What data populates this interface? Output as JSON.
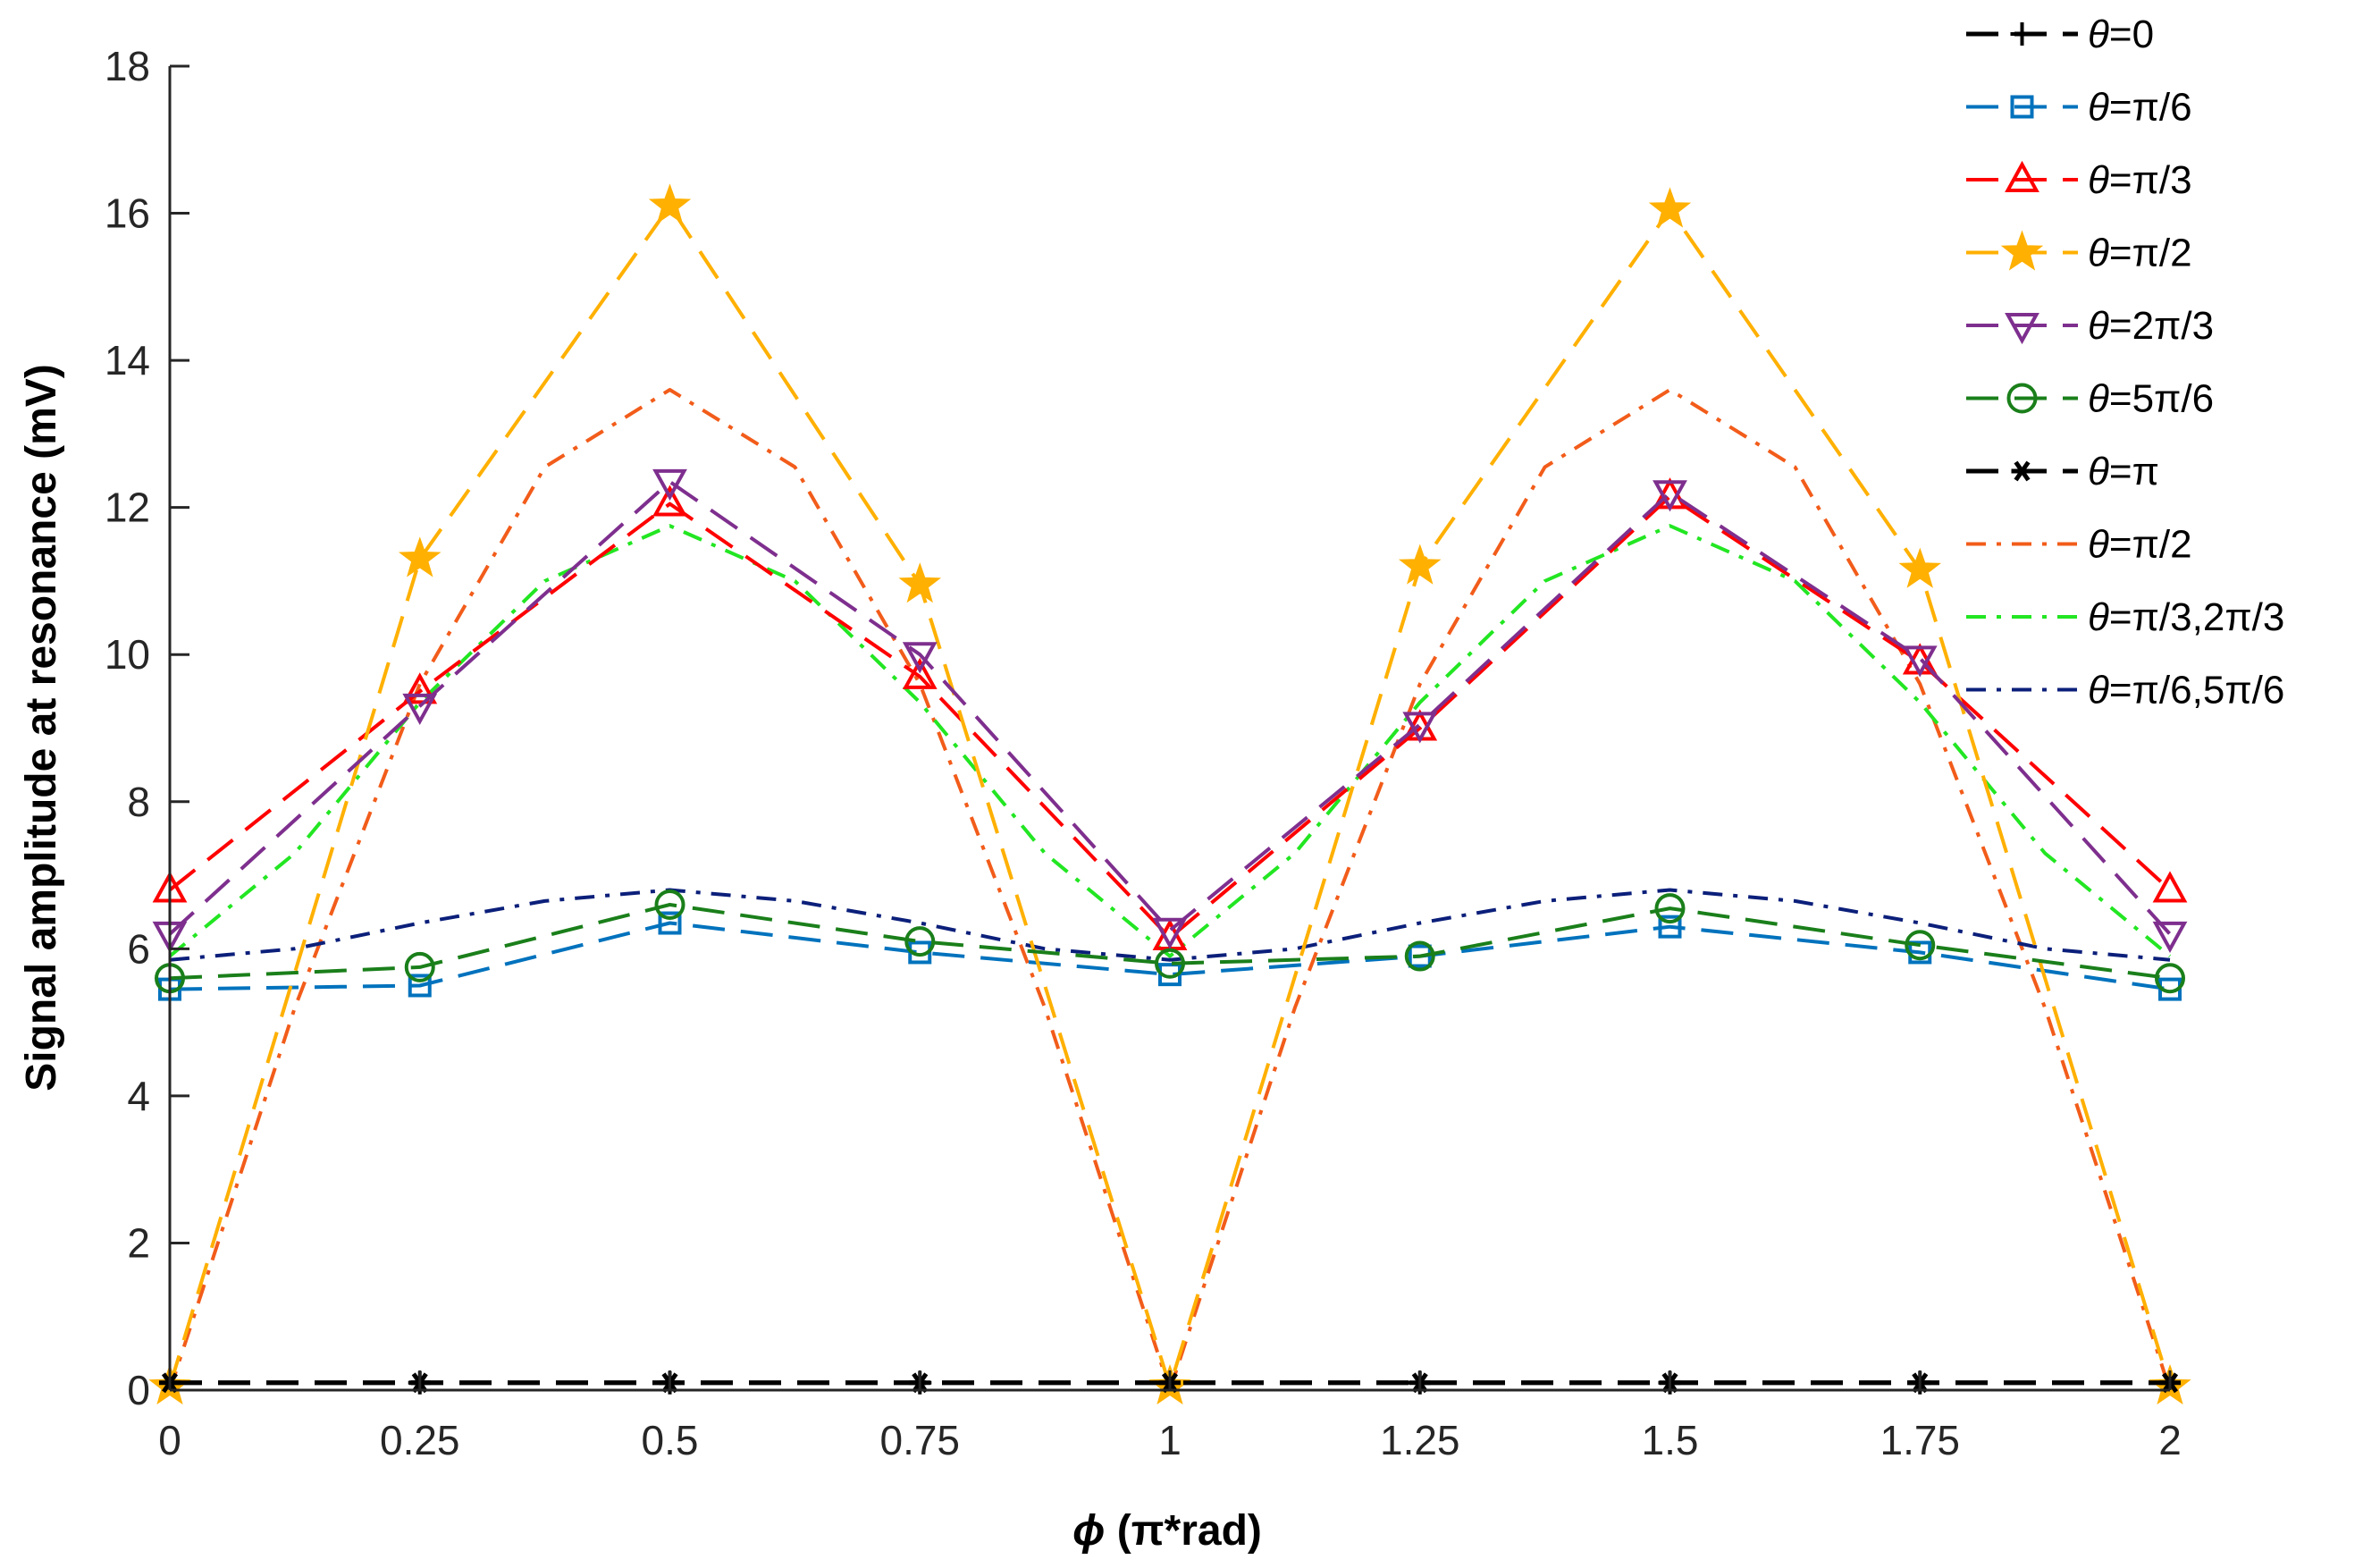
{
  "chart_data": {
    "type": "line",
    "xlabel_symbol": "ϕ",
    "xlabel_rest": " (π*rad)",
    "ylabel": "Signal amplitude at resonance (mV)",
    "xlim": [
      0,
      2
    ],
    "ylim": [
      0,
      18
    ],
    "xticks": [
      0,
      0.25,
      0.5,
      0.75,
      1,
      1.25,
      1.5,
      1.75,
      2
    ],
    "xtick_labels": [
      "0",
      "0.25",
      "0.5",
      "0.75",
      "1",
      "1.25",
      "1.5",
      "1.75",
      "2"
    ],
    "yticks": [
      0,
      2,
      4,
      6,
      8,
      10,
      12,
      14,
      16,
      18
    ],
    "ytick_labels": [
      "0",
      "2",
      "4",
      "6",
      "8",
      "10",
      "12",
      "14",
      "16",
      "18"
    ],
    "legend_position": "top-right",
    "series": [
      {
        "name": "θ=0",
        "label_symbol": "θ",
        "label_rest": "=0",
        "color": "#000000",
        "line": "dash",
        "marker": "plus",
        "width": 5,
        "x": [
          0,
          0.25,
          0.5,
          0.75,
          1,
          1.25,
          1.5,
          1.75,
          2
        ],
        "y": [
          0.1,
          0.1,
          0.1,
          0.1,
          0.1,
          0.1,
          0.1,
          0.1,
          0.1
        ]
      },
      {
        "name": "θ=π/6",
        "label_symbol": "θ",
        "label_rest": "=π/6",
        "color": "#0072BD",
        "line": "dash",
        "marker": "square",
        "width": 4,
        "x": [
          0,
          0.25,
          0.5,
          0.75,
          1,
          1.25,
          1.5,
          1.75,
          2
        ],
        "y": [
          5.45,
          5.5,
          6.35,
          5.95,
          5.65,
          5.9,
          6.3,
          5.95,
          5.45
        ]
      },
      {
        "name": "θ=π/3",
        "label_symbol": "θ",
        "label_rest": "=π/3",
        "color": "#FF0000",
        "line": "dash",
        "marker": "triangle-up",
        "width": 4,
        "x": [
          0,
          0.25,
          0.5,
          0.75,
          1,
          1.25,
          1.5,
          1.75,
          2
        ],
        "y": [
          6.8,
          9.5,
          12.05,
          9.7,
          6.15,
          9.0,
          12.15,
          9.9,
          6.8
        ]
      },
      {
        "name": "θ=π/2",
        "label_symbol": "θ",
        "label_rest": "=π/2",
        "color": "#FFB000",
        "line": "dash",
        "marker": "star",
        "width": 4,
        "x": [
          0,
          0.25,
          0.5,
          0.75,
          1,
          1.25,
          1.5,
          1.75,
          2
        ],
        "y": [
          0.05,
          11.3,
          16.1,
          10.95,
          0.05,
          11.2,
          16.05,
          11.15,
          0.05
        ]
      },
      {
        "name": "θ=2π/3",
        "label_symbol": "θ",
        "label_rest": "=2π/3",
        "color": "#7E2F8E",
        "line": "dash",
        "marker": "triangle-down",
        "width": 4,
        "x": [
          0,
          0.25,
          0.5,
          0.75,
          1,
          1.25,
          1.5,
          1.75,
          2
        ],
        "y": [
          6.2,
          9.3,
          12.35,
          10.0,
          6.25,
          9.05,
          12.2,
          9.95,
          6.2
        ]
      },
      {
        "name": "θ=5π/6",
        "label_symbol": "θ",
        "label_rest": "=5π/6",
        "color": "#1A7F1A",
        "line": "dash",
        "marker": "circle",
        "width": 4,
        "x": [
          0,
          0.25,
          0.5,
          0.75,
          1,
          1.25,
          1.5,
          1.75,
          2
        ],
        "y": [
          5.6,
          5.75,
          6.6,
          6.1,
          5.8,
          5.9,
          6.55,
          6.05,
          5.6
        ]
      },
      {
        "name": "θ=π",
        "label_symbol": "θ",
        "label_rest": "=π",
        "color": "#000000",
        "line": "dash",
        "marker": "asterisk",
        "width": 5,
        "x": [
          0,
          0.25,
          0.5,
          0.75,
          1,
          1.25,
          1.5,
          1.75,
          2
        ],
        "y": [
          0.1,
          0.1,
          0.1,
          0.1,
          0.1,
          0.1,
          0.1,
          0.1,
          0.1
        ]
      },
      {
        "name": "θ=π/2",
        "label_symbol": "θ",
        "label_rest": "=π/2",
        "color": "#F25C1A",
        "line": "dashdot",
        "marker": "none",
        "width": 4,
        "x": [
          0,
          0.125,
          0.25,
          0.375,
          0.5,
          0.625,
          0.75,
          0.875,
          1,
          1.125,
          1.25,
          1.375,
          1.5,
          1.625,
          1.75,
          1.875,
          2
        ],
        "y": [
          0.0,
          5.2,
          9.6,
          12.55,
          13.6,
          12.55,
          9.6,
          5.2,
          0.0,
          5.2,
          9.6,
          12.55,
          13.6,
          12.55,
          9.6,
          5.2,
          0.0
        ]
      },
      {
        "name": "θ=π/3,2π/3",
        "label_symbol": "θ",
        "label_rest": "=π/3,2π/3",
        "color": "#22E622",
        "line": "dashdot",
        "marker": "none",
        "width": 4,
        "x": [
          0,
          0.125,
          0.25,
          0.375,
          0.5,
          0.625,
          0.75,
          0.875,
          1,
          1.125,
          1.25,
          1.375,
          1.5,
          1.625,
          1.75,
          1.875,
          2
        ],
        "y": [
          5.9,
          7.3,
          9.35,
          11.0,
          11.75,
          11.0,
          9.35,
          7.3,
          5.9,
          7.3,
          9.35,
          11.0,
          11.75,
          11.0,
          9.35,
          7.3,
          5.9
        ]
      },
      {
        "name": "θ=π/6,5π/6",
        "label_symbol": "θ",
        "label_rest": "=π/6,5π/6",
        "color": "#0B1F7A",
        "line": "dashdot",
        "marker": "none",
        "width": 4,
        "x": [
          0,
          0.125,
          0.25,
          0.375,
          0.5,
          0.625,
          0.75,
          0.875,
          1,
          1.125,
          1.25,
          1.375,
          1.5,
          1.625,
          1.75,
          1.875,
          2
        ],
        "y": [
          5.85,
          6.0,
          6.35,
          6.65,
          6.8,
          6.65,
          6.35,
          6.0,
          5.85,
          6.0,
          6.35,
          6.65,
          6.8,
          6.65,
          6.35,
          6.0,
          5.85
        ]
      }
    ]
  }
}
